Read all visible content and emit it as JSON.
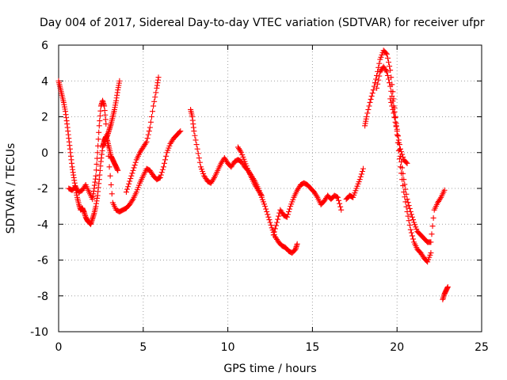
{
  "chart_data": {
    "type": "scatter",
    "title": "Day 004 of 2017, Sidereal Day-to-day VTEC variation (SDTVAR) for receiver ufpr",
    "xlabel": "GPS time / hours",
    "ylabel": "SDTVAR / TECUs",
    "xlim": [
      0,
      25
    ],
    "ylim": [
      -10,
      6
    ],
    "xticks": [
      0,
      5,
      10,
      15,
      20,
      25
    ],
    "yticks": [
      -10,
      -8,
      -6,
      -4,
      -2,
      0,
      2,
      4,
      6
    ],
    "xtick_labels": [
      "0",
      "5",
      "10",
      "15",
      "20",
      "25"
    ],
    "ytick_labels": [
      "-10",
      "-8",
      "-6",
      "-4",
      "-2",
      "0",
      "2",
      "4",
      "6"
    ],
    "grid": true,
    "legend": "none",
    "marker": "plus",
    "series_color": "#ff0000",
    "series": [
      {
        "x": [
          0.0,
          0.1,
          0.2,
          0.3,
          0.4,
          0.5,
          0.6,
          0.7,
          0.8,
          0.9,
          1.0,
          1.1,
          1.2,
          1.3,
          1.4,
          1.5,
          1.6,
          1.7,
          1.8,
          1.9,
          2.0,
          2.1,
          2.2,
          2.3,
          2.4,
          2.5,
          2.6,
          2.7,
          2.8,
          2.9,
          3.0,
          3.1,
          3.2,
          3.3,
          3.4,
          3.5
        ],
        "y": [
          4.0,
          3.6,
          3.2,
          2.8,
          2.3,
          1.6,
          0.8,
          0.0,
          -0.8,
          -1.4,
          -2.0,
          -2.5,
          -2.9,
          -3.2,
          -3.1,
          -3.3,
          -3.6,
          -3.8,
          -3.9,
          -4.0,
          -3.7,
          -3.4,
          -3.0,
          -2.4,
          -1.5,
          -0.5,
          0.3,
          0.7,
          0.9,
          0.6,
          0.2,
          -0.2,
          -0.4,
          -0.6,
          -0.8,
          -1.0
        ]
      },
      {
        "x": [
          0.6,
          0.8,
          1.0,
          1.2,
          1.4,
          1.6,
          1.8,
          2.0,
          2.1,
          2.2,
          2.3,
          2.4,
          2.5,
          2.6,
          2.7,
          2.8,
          3.0,
          3.2,
          3.4,
          3.6,
          3.8,
          4.0
        ],
        "y": [
          -2.0,
          -2.1,
          -1.9,
          -2.2,
          -2.1,
          -1.8,
          -2.2,
          -2.6,
          -2.0,
          -1.3,
          0.0,
          1.5,
          2.6,
          2.9,
          2.6,
          1.6,
          -0.8,
          -2.8,
          -3.2,
          -3.3,
          -3.2,
          -3.1
        ]
      },
      {
        "x": [
          2.6,
          2.7,
          2.8,
          2.9,
          3.0,
          3.1,
          3.2,
          3.3,
          3.4,
          3.5,
          3.6
        ],
        "y": [
          0.3,
          0.6,
          0.8,
          1.0,
          1.3,
          1.6,
          2.0,
          2.4,
          2.9,
          3.5,
          4.0
        ]
      },
      {
        "x": [
          4.0,
          4.2,
          4.4,
          4.6,
          4.8,
          5.0,
          5.2,
          5.4,
          5.6,
          5.8,
          6.0
        ],
        "y": [
          -3.1,
          -2.9,
          -2.6,
          -2.2,
          -1.7,
          -1.3,
          -0.9,
          -1.0,
          -1.3,
          -1.5,
          -1.4
        ]
      },
      {
        "x": [
          4.0,
          4.2,
          4.4,
          4.6,
          4.8,
          5.0,
          5.2,
          5.4,
          5.6,
          5.8,
          5.9
        ],
        "y": [
          -2.2,
          -1.6,
          -1.0,
          -0.4,
          0.0,
          0.3,
          0.6,
          1.4,
          2.6,
          3.6,
          4.2
        ]
      },
      {
        "x": [
          6.0,
          6.2,
          6.4,
          6.6,
          6.8,
          7.0,
          7.2
        ],
        "y": [
          -1.4,
          -0.8,
          0.0,
          0.5,
          0.8,
          1.0,
          1.2
        ]
      },
      {
        "x": [
          7.8,
          7.9,
          8.0,
          8.2,
          8.4,
          8.6,
          8.8,
          9.0,
          9.2,
          9.4,
          9.6,
          9.8,
          10.0,
          10.2,
          10.4,
          10.6,
          10.8,
          11.0,
          11.2,
          11.4,
          11.6,
          11.8,
          12.0,
          12.2,
          12.4,
          12.6,
          12.8,
          13.0,
          13.2,
          13.4,
          13.6,
          13.8,
          14.0,
          14.1
        ],
        "y": [
          2.4,
          2.0,
          1.2,
          0.2,
          -0.8,
          -1.3,
          -1.6,
          -1.7,
          -1.4,
          -1.0,
          -0.6,
          -0.3,
          -0.6,
          -0.8,
          -0.5,
          -0.4,
          -0.5,
          -0.8,
          -1.0,
          -1.3,
          -1.6,
          -2.0,
          -2.5,
          -3.0,
          -3.6,
          -4.2,
          -4.7,
          -5.0,
          -5.2,
          -5.3,
          -5.5,
          -5.6,
          -5.4,
          -5.1
        ]
      },
      {
        "x": [
          10.6,
          10.8,
          11.0,
          11.2,
          11.4,
          11.6,
          11.8,
          12.0
        ],
        "y": [
          0.3,
          0.0,
          -0.5,
          -1.0,
          -1.4,
          -1.8,
          -2.1,
          -2.4
        ]
      },
      {
        "x": [
          12.7,
          12.9,
          13.1,
          13.3,
          13.5,
          13.7,
          13.9,
          14.1,
          14.3,
          14.5,
          14.7,
          14.9,
          15.1,
          15.3,
          15.5,
          15.7,
          15.9,
          16.1,
          16.3,
          16.5,
          16.7
        ],
        "y": [
          -4.6,
          -3.9,
          -3.2,
          -3.5,
          -3.6,
          -3.0,
          -2.5,
          -2.1,
          -1.8,
          -1.7,
          -1.8,
          -2.0,
          -2.2,
          -2.5,
          -2.9,
          -2.7,
          -2.4,
          -2.6,
          -2.4,
          -2.5,
          -3.2
        ]
      },
      {
        "x": [
          17.0,
          17.2,
          17.4,
          17.6,
          17.8,
          18.0
        ],
        "y": [
          -2.6,
          -2.4,
          -2.5,
          -2.0,
          -1.5,
          -0.9
        ]
      },
      {
        "x": [
          18.1,
          18.2,
          18.4,
          18.6,
          18.8,
          19.0,
          19.2,
          19.4,
          19.6,
          19.8,
          20.0,
          20.2,
          20.4,
          20.6,
          20.8,
          21.0,
          21.2,
          21.4,
          21.6,
          21.8,
          22.0
        ],
        "y": [
          1.5,
          2.0,
          2.8,
          3.5,
          4.3,
          5.2,
          5.7,
          5.5,
          4.6,
          3.0,
          1.0,
          -0.8,
          -2.2,
          -3.3,
          -4.3,
          -5.0,
          -5.4,
          -5.6,
          -5.9,
          -6.1,
          -5.6
        ]
      },
      {
        "x": [
          18.8,
          19.0,
          19.2,
          19.4,
          19.6,
          19.8,
          20.0,
          20.2,
          20.4,
          20.6,
          20.8,
          21.0,
          21.2,
          21.4,
          21.6,
          21.8,
          22.0,
          22.2,
          22.4,
          22.6,
          22.8
        ],
        "y": [
          3.6,
          4.5,
          4.8,
          4.5,
          3.7,
          2.6,
          1.3,
          -0.2,
          -1.5,
          -2.6,
          -3.3,
          -3.9,
          -4.4,
          -4.6,
          -4.8,
          -5.0,
          -5.0,
          -3.2,
          -2.8,
          -2.5,
          -2.1
        ]
      },
      {
        "x": [
          19.6,
          19.8,
          20.0,
          20.2,
          20.4,
          20.6
        ],
        "y": [
          3.0,
          2.2,
          1.2,
          0.2,
          -0.4,
          -0.6
        ]
      },
      {
        "x": [
          22.7,
          22.8,
          22.9,
          23.0
        ],
        "y": [
          -8.2,
          -7.9,
          -7.7,
          -7.5
        ]
      }
    ]
  }
}
